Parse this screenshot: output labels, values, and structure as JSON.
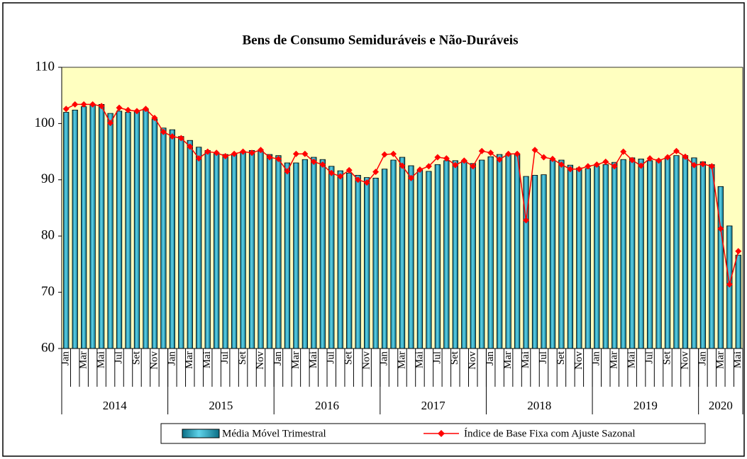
{
  "chart_data": {
    "type": "bar-line",
    "title": "Bens de Consumo Semiduráveis e Não-Duráveis",
    "categories": [
      "Jan",
      null,
      "Mar",
      null,
      "Mai",
      null,
      "Jul",
      null,
      "Set",
      null,
      "Nov",
      null,
      "Jan",
      null,
      "Mar",
      null,
      "Mai",
      null,
      "Jul",
      null,
      "Set",
      null,
      "Nov",
      null,
      "Jan",
      null,
      "Mar",
      null,
      "Mai",
      null,
      "Jul",
      null,
      "Set",
      null,
      "Nov",
      null,
      "Jan",
      null,
      "Mar",
      null,
      "Mai",
      null,
      "Jul",
      null,
      "Set",
      null,
      "Nov",
      null,
      "Jan",
      null,
      "Mar",
      null,
      "Mai",
      null,
      "Jul",
      null,
      "Set",
      null,
      "Nov",
      null,
      "Jan",
      null,
      "Mar",
      null,
      "Mai",
      null,
      "Jul",
      null,
      "Set",
      null,
      "Nov",
      null,
      "Jan",
      null,
      "Mar",
      null,
      "Mai"
    ],
    "years": [
      "2014",
      "2015",
      "2016",
      "2017",
      "2018",
      "2019",
      "2020"
    ],
    "series": [
      {
        "name": "Média Móvel Trimestral",
        "color": "#1aa6c4",
        "kind": "bar",
        "values": [
          102.0,
          102.4,
          103.0,
          103.4,
          103.4,
          101.8,
          102.2,
          102.0,
          102.3,
          102.6,
          100.8,
          99.2,
          98.9,
          97.7,
          97.0,
          95.8,
          95.2,
          94.7,
          94.5,
          94.6,
          95.0,
          95.2,
          95.1,
          94.5,
          94.3,
          93.0,
          93.0,
          93.6,
          94.0,
          93.6,
          92.4,
          91.6,
          91.2,
          90.8,
          90.4,
          90.3,
          91.9,
          93.5,
          94.0,
          92.5,
          91.7,
          91.5,
          92.7,
          93.4,
          93.4,
          93.3,
          92.9,
          93.5,
          94.1,
          94.5,
          94.6,
          94.5,
          90.6,
          90.8,
          90.9,
          93.5,
          93.5,
          92.6,
          92.1,
          92.0,
          92.4,
          92.7,
          93.1,
          93.6,
          93.9,
          93.7,
          93.4,
          93.6,
          94.0,
          94.3,
          94.3,
          93.9,
          93.2,
          92.7,
          88.8,
          81.8,
          76.6
        ]
      },
      {
        "name": "Índice de Base Fixa com Ajuste Sazonal",
        "color": "#ff0000",
        "kind": "line",
        "values": [
          102.6,
          103.4,
          103.4,
          103.4,
          103.1,
          100.1,
          102.8,
          102.4,
          102.2,
          102.6,
          101.0,
          98.5,
          97.7,
          97.4,
          95.9,
          93.8,
          95.0,
          94.8,
          94.2,
          94.6,
          95.0,
          94.8,
          95.3,
          94.0,
          93.7,
          91.5,
          94.6,
          94.6,
          93.2,
          92.7,
          91.2,
          90.6,
          91.7,
          90.0,
          89.5,
          91.4,
          94.5,
          94.6,
          92.5,
          90.3,
          91.8,
          92.4,
          94.0,
          93.8,
          92.6,
          93.4,
          92.4,
          95.1,
          94.8,
          93.6,
          94.6,
          94.6,
          82.8,
          95.3,
          94.0,
          93.7,
          92.7,
          91.9,
          91.9,
          92.4,
          92.7,
          93.2,
          92.4,
          95.0,
          93.5,
          92.5,
          93.8,
          93.4,
          94.0,
          95.1,
          94.1,
          92.6,
          92.8,
          92.4,
          81.3,
          71.4,
          77.3
        ]
      }
    ],
    "ylim": [
      60,
      110
    ],
    "yticks": [
      60,
      70,
      80,
      90,
      100,
      110
    ],
    "plot_background": "#ffffc0",
    "grid": false
  }
}
